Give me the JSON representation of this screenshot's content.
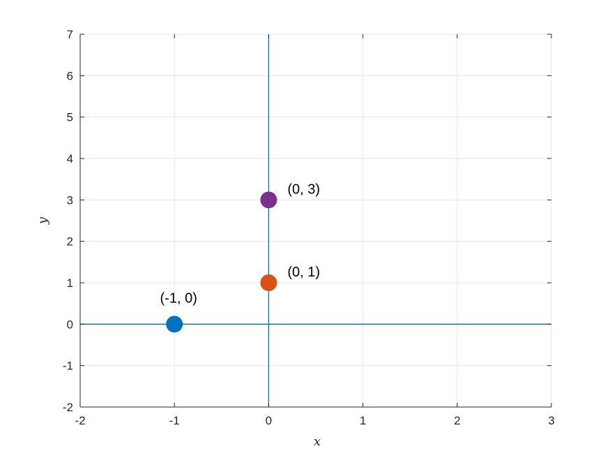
{
  "chart_data": {
    "type": "scatter",
    "title": "",
    "xlabel": "x",
    "ylabel": "y",
    "xlim": [
      -2,
      3
    ],
    "ylim": [
      -2,
      7
    ],
    "x_ticks": [
      "-2",
      "-1",
      "0",
      "1",
      "2",
      "3"
    ],
    "y_ticks": [
      "-2",
      "-1",
      "0",
      "1",
      "2",
      "3",
      "4",
      "5",
      "6",
      "7"
    ],
    "grid": true,
    "axis_lines_through_origin": true,
    "points": [
      {
        "x": -1,
        "y": 0,
        "label": "(-1, 0)",
        "color": "#0072BD",
        "label_position": "above"
      },
      {
        "x": 0,
        "y": 1,
        "label": "(0, 1)",
        "color": "#D95319",
        "label_position": "right"
      },
      {
        "x": 0,
        "y": 3,
        "label": "(0, 3)",
        "color": "#7E2F8E",
        "label_position": "right"
      }
    ],
    "colors": {
      "axis_line": "#0072BD",
      "grid": "#e6e6e6",
      "frame": "#262626"
    }
  }
}
